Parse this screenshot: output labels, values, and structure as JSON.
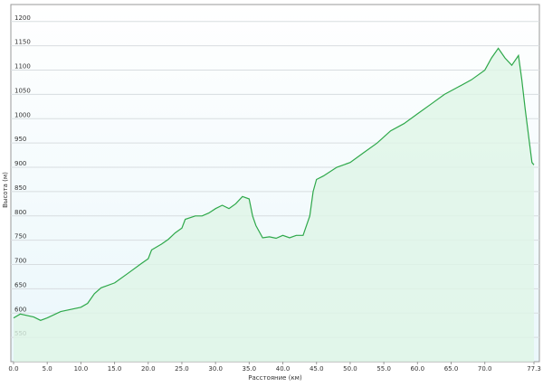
{
  "chart_data": {
    "type": "area",
    "x_label": "Расстояние (км)",
    "y_label": "Высота (м)",
    "x": [
      0,
      1,
      3,
      4,
      5,
      7,
      10,
      11,
      12,
      13,
      15,
      17,
      19,
      20,
      20.5,
      22,
      23,
      24,
      25,
      25.5,
      27,
      28,
      29,
      30,
      31,
      32,
      33,
      34,
      35,
      35.5,
      36,
      37,
      38,
      39,
      40,
      41,
      42,
      43,
      44,
      44.5,
      45,
      46,
      48,
      50,
      52,
      54,
      56,
      58,
      60,
      62,
      64,
      66,
      68,
      70,
      71,
      72,
      73,
      74,
      75,
      75.5,
      76,
      77,
      77.3
    ],
    "values": [
      590,
      598,
      592,
      585,
      590,
      603,
      612,
      620,
      640,
      652,
      662,
      682,
      702,
      712,
      730,
      742,
      752,
      765,
      775,
      793,
      800,
      800,
      806,
      815,
      822,
      815,
      825,
      840,
      835,
      800,
      780,
      755,
      757,
      754,
      760,
      755,
      760,
      760,
      800,
      850,
      875,
      882,
      900,
      910,
      930,
      950,
      975,
      990,
      1010,
      1030,
      1050,
      1065,
      1080,
      1100,
      1125,
      1145,
      1125,
      1110,
      1130,
      1080,
      1020,
      910,
      905
    ],
    "color": "#2ea84a",
    "fill": "#dff5e6",
    "xlim": [
      0,
      77.3
    ],
    "ylim": [
      500,
      1235
    ],
    "xticks": [
      {
        "value": 0,
        "label": "0.0"
      },
      {
        "value": 5,
        "label": "5.0"
      },
      {
        "value": 10,
        "label": "10.0"
      },
      {
        "value": 15,
        "label": "15.0"
      },
      {
        "value": 20,
        "label": "20.0"
      },
      {
        "value": 25,
        "label": "25.0"
      },
      {
        "value": 30,
        "label": "30.0"
      },
      {
        "value": 35,
        "label": "35.0"
      },
      {
        "value": 40,
        "label": "40.0"
      },
      {
        "value": 45,
        "label": "45.0"
      },
      {
        "value": 50,
        "label": "50.0"
      },
      {
        "value": 55,
        "label": "55.0"
      },
      {
        "value": 60,
        "label": "60.0"
      },
      {
        "value": 65,
        "label": "65.0"
      },
      {
        "value": 70,
        "label": "70.0"
      },
      77.3
    ],
    "yticks": [
      550,
      600,
      650,
      700,
      750,
      800,
      850,
      900,
      950,
      1000,
      1050,
      1100,
      1150,
      1200
    ],
    "grid": true
  }
}
